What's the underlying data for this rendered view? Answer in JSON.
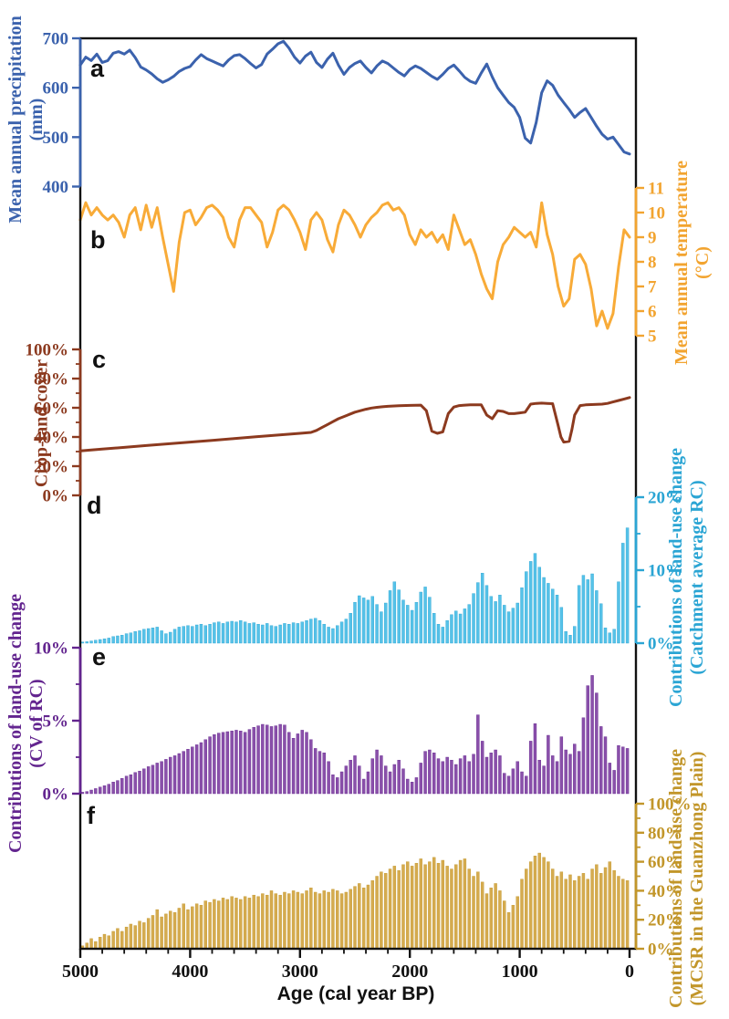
{
  "x_axis": {
    "title": "Age (cal year BP)",
    "tick_values": [
      5000,
      4000,
      3000,
      2000,
      1000,
      0
    ],
    "tick_labels": [
      "5000",
      "4000",
      "3000",
      "2000",
      "1000",
      "0"
    ],
    "minor_tick_step": 200,
    "range": [
      5000,
      0
    ]
  },
  "panels": {
    "a": {
      "letter": "a",
      "title_line1": "Mean annual precipitation",
      "title_line2": "(mm)",
      "color": "#3b62ad",
      "series_color": "#3b62ad",
      "side": "left",
      "ylim": [
        400,
        700
      ],
      "tick_values": [
        700,
        600,
        500,
        400
      ],
      "tick_labels": [
        "700",
        "600",
        "500",
        "400"
      ]
    },
    "b": {
      "letter": "b",
      "title_line1": "Mean annual temperature",
      "title_line2": "(°C)",
      "color": "#f2a430",
      "series_color": "#f8ab38",
      "side": "right",
      "ylim": [
        5,
        11
      ],
      "tick_values": [
        11,
        10,
        9,
        8,
        7,
        6,
        5
      ],
      "tick_labels": [
        "11",
        "10",
        "9",
        "8",
        "7",
        "6",
        "5"
      ]
    },
    "c": {
      "letter": "c",
      "title_line1": "Crop-land cover",
      "title_line2": "",
      "color": "#8c3a1f",
      "series_color": "#8c3a1f",
      "side": "left",
      "ylim": [
        0,
        100
      ],
      "tick_values": [
        100,
        80,
        60,
        40,
        20,
        0
      ],
      "tick_labels": [
        "100%",
        "80%",
        "60%",
        "40%",
        "20%",
        "0%"
      ]
    },
    "d": {
      "letter": "d",
      "title_line1": "Contributions of land-use change",
      "title_line2": "(Catchment average RC)",
      "color": "#2ba5d4",
      "series_color": "#56c2e8",
      "side": "right",
      "ylim": [
        0,
        20
      ],
      "tick_values": [
        20,
        10,
        0
      ],
      "tick_labels": [
        "20%",
        "10%",
        "0%"
      ]
    },
    "e": {
      "letter": "e",
      "title_line1": "Contributions of land-use change",
      "title_line2": "(CV of RC)",
      "color": "#63258f",
      "series_color": "#8a50aa",
      "side": "left",
      "ylim": [
        0,
        10
      ],
      "tick_values": [
        10,
        5,
        0
      ],
      "tick_labels": [
        "10%",
        "5%",
        "0%"
      ]
    },
    "f": {
      "letter": "f",
      "title_line1": "Contributions of land-use change",
      "title_line2": "(MCSR in the Guanzhong Plain)",
      "color": "#c2962a",
      "series_color": "#d5ab4f",
      "side": "right",
      "ylim": [
        0,
        100
      ],
      "tick_values": [
        100,
        80,
        60,
        40,
        20,
        0
      ],
      "tick_labels": [
        "100%",
        "80%",
        "60%",
        "40%",
        "20%",
        "0%"
      ]
    }
  },
  "chart_data": [
    {
      "panel": "a",
      "type": "line",
      "name": "Mean annual precipitation (mm)",
      "xlabel": "Age (cal year BP)",
      "age_start": 5000,
      "age_step": -50,
      "values": [
        646,
        662,
        655,
        668,
        651,
        655,
        670,
        673,
        668,
        676,
        661,
        642,
        636,
        628,
        618,
        611,
        616,
        623,
        633,
        639,
        643,
        656,
        667,
        659,
        654,
        649,
        644,
        656,
        665,
        667,
        659,
        649,
        640,
        647,
        668,
        678,
        689,
        694,
        680,
        662,
        650,
        664,
        672,
        651,
        641,
        658,
        670,
        646,
        627,
        641,
        649,
        654,
        641,
        630,
        644,
        654,
        649,
        640,
        631,
        624,
        637,
        644,
        639,
        631,
        623,
        617,
        627,
        639,
        646,
        634,
        621,
        613,
        609,
        630,
        648,
        622,
        600,
        585,
        570,
        560,
        540,
        498,
        488,
        530,
        590,
        614,
        605,
        585,
        570,
        556,
        540,
        550,
        558,
        540,
        522,
        506,
        496,
        500,
        485,
        470,
        466
      ]
    },
    {
      "panel": "b",
      "type": "line",
      "name": "Mean annual temperature (°C)",
      "xlabel": "Age (cal year BP)",
      "age_start": 5000,
      "age_step": -50,
      "values": [
        9.7,
        10.4,
        9.9,
        10.2,
        9.9,
        9.7,
        9.9,
        9.6,
        9.0,
        9.9,
        10.2,
        9.3,
        10.3,
        9.4,
        10.2,
        9.0,
        7.9,
        6.8,
        8.8,
        10.0,
        10.1,
        9.5,
        9.8,
        10.2,
        10.3,
        10.1,
        9.8,
        9.0,
        8.6,
        9.7,
        10.2,
        10.2,
        9.9,
        9.6,
        8.6,
        9.2,
        10.1,
        10.3,
        10.1,
        9.7,
        9.2,
        8.5,
        9.7,
        10.0,
        9.7,
        8.9,
        8.4,
        9.5,
        10.1,
        9.9,
        9.5,
        9.0,
        9.5,
        9.8,
        10.0,
        10.3,
        10.4,
        10.1,
        10.2,
        9.9,
        9.1,
        8.7,
        9.3,
        9.0,
        9.2,
        8.8,
        9.1,
        8.5,
        9.9,
        9.3,
        8.7,
        8.9,
        8.3,
        7.5,
        6.9,
        6.5,
        8.0,
        8.7,
        9.0,
        9.4,
        9.2,
        9.0,
        9.2,
        8.6,
        10.4,
        9.1,
        8.3,
        7.0,
        6.2,
        6.5,
        8.1,
        8.3,
        7.9,
        6.9,
        5.4,
        6.0,
        5.3,
        5.9,
        7.8,
        9.3,
        9.0
      ]
    },
    {
      "panel": "c",
      "type": "line",
      "name": "Crop-land cover (%)",
      "xlabel": "Age (cal year BP)",
      "ages": [
        5000,
        4800,
        4600,
        4400,
        4200,
        4000,
        3800,
        3600,
        3400,
        3200,
        3000,
        2900,
        2850,
        2800,
        2750,
        2700,
        2650,
        2600,
        2550,
        2500,
        2450,
        2400,
        2350,
        2300,
        2250,
        2200,
        2100,
        2000,
        1950,
        1900,
        1850,
        1800,
        1750,
        1700,
        1650,
        1600,
        1550,
        1500,
        1450,
        1400,
        1350,
        1300,
        1250,
        1200,
        1150,
        1100,
        1050,
        1000,
        950,
        900,
        850,
        800,
        750,
        700,
        650,
        625,
        600,
        550,
        525,
        500,
        450,
        400,
        350,
        300,
        250,
        200,
        150,
        100,
        50,
        0
      ],
      "values": [
        30.5,
        31.7,
        32.9,
        34.1,
        35.3,
        36.5,
        37.7,
        38.9,
        40.1,
        41.3,
        42.5,
        43.1,
        44.5,
        46.5,
        48.5,
        50.5,
        52.5,
        54.0,
        55.5,
        57.0,
        58.0,
        59.0,
        59.8,
        60.3,
        60.7,
        61.0,
        61.4,
        61.6,
        61.7,
        61.8,
        58.0,
        44.0,
        42.5,
        43.5,
        56.0,
        60.5,
        61.5,
        61.8,
        62.0,
        62.0,
        62.0,
        55.0,
        52.5,
        58.0,
        57.5,
        56.0,
        56.0,
        56.5,
        57.0,
        62.5,
        63.0,
        63.2,
        63.0,
        62.8,
        48.0,
        40.0,
        36.5,
        37.0,
        45.0,
        55.0,
        61.5,
        62.0,
        62.2,
        62.3,
        62.5,
        63.0,
        64.0,
        65.0,
        66.0,
        67.0
      ]
    },
    {
      "panel": "d",
      "type": "bar",
      "name": "Contributions of land-use change — Catchment average RC (%)",
      "xlabel": "Age (cal year BP)",
      "age_start": 4980,
      "age_step": -40,
      "values": [
        0.15,
        0.2,
        0.3,
        0.4,
        0.5,
        0.6,
        0.7,
        0.9,
        1.0,
        1.1,
        1.3,
        1.4,
        1.6,
        1.7,
        1.9,
        2.0,
        2.1,
        2.2,
        1.7,
        1.3,
        1.5,
        1.9,
        2.2,
        2.3,
        2.4,
        2.3,
        2.5,
        2.6,
        2.4,
        2.6,
        2.8,
        2.9,
        2.7,
        2.9,
        3.0,
        2.9,
        3.1,
        2.9,
        2.7,
        2.8,
        2.6,
        2.5,
        2.7,
        2.4,
        2.3,
        2.5,
        2.7,
        2.6,
        2.8,
        2.7,
        2.9,
        3.1,
        3.3,
        3.4,
        3.1,
        2.6,
        2.2,
        2.0,
        2.4,
        2.9,
        3.3,
        4.1,
        5.6,
        6.5,
        6.2,
        5.9,
        6.4,
        5.3,
        4.3,
        5.5,
        7.2,
        8.4,
        7.3,
        5.9,
        5.2,
        4.5,
        5.6,
        7.0,
        7.7,
        6.3,
        4.1,
        2.6,
        2.2,
        3.1,
        3.9,
        4.4,
        4.0,
        4.7,
        5.3,
        6.8,
        8.3,
        9.6,
        7.9,
        6.4,
        5.7,
        6.6,
        5.2,
        4.3,
        4.8,
        5.5,
        7.6,
        9.8,
        11.2,
        12.3,
        10.4,
        9.0,
        8.2,
        7.4,
        6.6,
        4.9,
        1.6,
        1.1,
        2.3,
        7.9,
        9.3,
        8.7,
        9.5,
        7.2,
        5.4,
        2.1,
        1.4,
        1.9,
        8.4,
        13.7,
        15.8
      ]
    },
    {
      "panel": "e",
      "type": "bar",
      "name": "Contributions of land-use change — CV of RC (%)",
      "xlabel": "Age (cal year BP)",
      "age_start": 4980,
      "age_step": -40,
      "values": [
        0.1,
        0.15,
        0.25,
        0.35,
        0.45,
        0.55,
        0.65,
        0.8,
        0.9,
        1.05,
        1.2,
        1.3,
        1.45,
        1.55,
        1.7,
        1.85,
        1.95,
        2.1,
        2.2,
        2.35,
        2.5,
        2.6,
        2.75,
        2.9,
        3.05,
        3.2,
        3.35,
        3.5,
        3.7,
        3.9,
        4.05,
        4.15,
        4.2,
        4.25,
        4.3,
        4.35,
        4.3,
        4.2,
        4.4,
        4.55,
        4.65,
        4.75,
        4.7,
        4.6,
        4.65,
        4.75,
        4.7,
        4.2,
        3.8,
        4.1,
        4.35,
        4.2,
        3.7,
        3.1,
        2.9,
        2.8,
        2.2,
        1.3,
        1.1,
        1.5,
        1.9,
        2.3,
        2.6,
        1.9,
        1.0,
        1.5,
        2.4,
        3.0,
        2.6,
        1.9,
        1.5,
        2.0,
        2.3,
        1.7,
        1.0,
        0.8,
        1.1,
        2.1,
        2.9,
        3.0,
        2.8,
        2.4,
        2.2,
        2.5,
        2.3,
        2.0,
        2.4,
        2.6,
        2.2,
        2.7,
        5.4,
        3.6,
        2.5,
        2.8,
        3.0,
        2.6,
        1.4,
        1.2,
        1.7,
        2.2,
        1.5,
        1.2,
        3.6,
        4.8,
        2.3,
        1.9,
        4.0,
        2.6,
        2.2,
        3.9,
        3.0,
        2.7,
        3.4,
        2.9,
        5.2,
        7.4,
        8.1,
        6.9,
        4.6,
        3.9,
        2.1,
        1.6,
        3.3,
        3.2,
        3.1
      ]
    },
    {
      "panel": "f",
      "type": "bar",
      "name": "Contributions of land-use change — MCSR in the Guanzhong Plain (%)",
      "xlabel": "Age (cal year BP)",
      "age_start": 4980,
      "age_step": -40,
      "values": [
        2,
        4,
        7,
        5,
        8,
        10,
        9,
        12,
        14,
        12,
        15,
        17,
        16,
        19,
        18,
        21,
        23,
        27,
        22,
        24,
        26,
        25,
        28,
        31,
        27,
        29,
        31,
        30,
        33,
        32,
        34,
        33,
        35,
        34,
        36,
        35,
        34,
        36,
        35,
        37,
        36,
        38,
        37,
        40,
        38,
        37,
        39,
        38,
        40,
        39,
        38,
        40,
        42,
        39,
        38,
        40,
        39,
        41,
        40,
        38,
        39,
        41,
        43,
        45,
        42,
        44,
        47,
        50,
        53,
        52,
        55,
        57,
        54,
        58,
        60,
        57,
        59,
        62,
        58,
        60,
        63,
        59,
        61,
        57,
        55,
        58,
        61,
        62,
        55,
        50,
        53,
        46,
        38,
        42,
        45,
        40,
        33,
        25,
        30,
        36,
        48,
        55,
        60,
        64,
        66,
        63,
        60,
        55,
        50,
        53,
        48,
        51,
        47,
        50,
        52,
        48,
        55,
        58,
        52,
        56,
        60,
        54,
        50,
        48,
        47
      ]
    }
  ]
}
